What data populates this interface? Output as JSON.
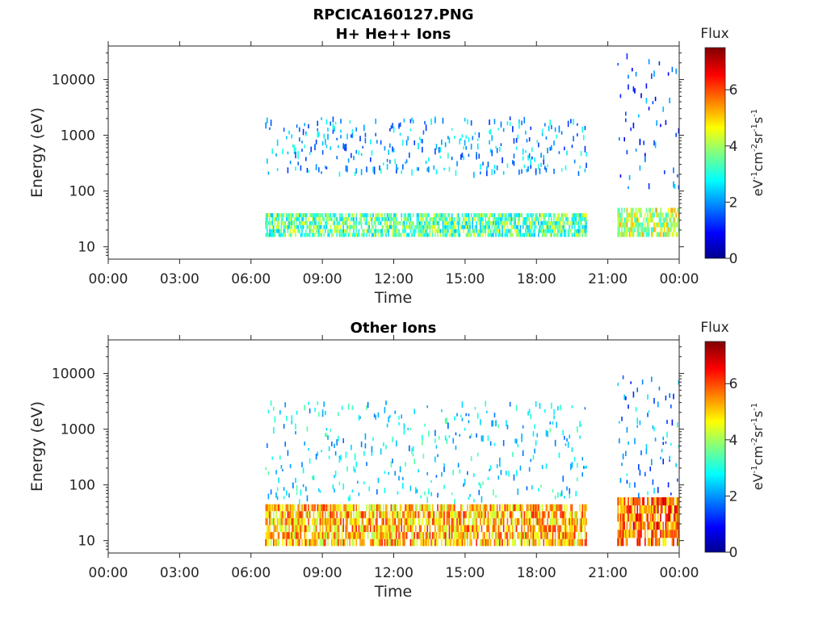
{
  "figure_title": "RPCICA160127.PNG",
  "chart_data": [
    {
      "type": "heatmap",
      "title": "H+ He++ Ions",
      "xlabel": "Time",
      "ylabel": "Energy (eV)",
      "x_ticks": [
        "00:00",
        "03:00",
        "06:00",
        "09:00",
        "12:00",
        "15:00",
        "18:00",
        "21:00",
        "00:00"
      ],
      "x_range_hours": [
        0,
        24
      ],
      "y_scale": "log",
      "ylim": [
        6,
        40000
      ],
      "y_ticks": [
        10,
        100,
        1000,
        10000
      ],
      "y_tick_labels": [
        "10",
        "100",
        "1000",
        "10000"
      ],
      "colorbar": {
        "label": "Flux",
        "unit": "eV-1cm-2sr-1s-1",
        "range": [
          0,
          7.5
        ],
        "ticks": [
          "0",
          "2",
          "4",
          "6"
        ],
        "colormap": "jet"
      },
      "segments": [
        {
          "start_hr": 6.6,
          "end_hr": 20.1,
          "low_energy_band_eV": [
            15,
            40
          ],
          "band_flux": 3.4,
          "scatter_eV": [
            200,
            2000
          ],
          "scatter_flux": 2.2
        },
        {
          "start_hr": 21.4,
          "end_hr": 24.0,
          "low_energy_band_eV": [
            15,
            50
          ],
          "band_flux": 4.2,
          "scatter_eV": [
            100,
            30000
          ],
          "scatter_flux": 1.5
        }
      ]
    },
    {
      "type": "heatmap",
      "title": "Other Ions",
      "xlabel": "Time",
      "ylabel": "Energy (eV)",
      "x_ticks": [
        "00:00",
        "03:00",
        "06:00",
        "09:00",
        "12:00",
        "15:00",
        "18:00",
        "21:00",
        "00:00"
      ],
      "x_range_hours": [
        0,
        24
      ],
      "y_scale": "log",
      "ylim": [
        6,
        40000
      ],
      "y_ticks": [
        10,
        100,
        1000,
        10000
      ],
      "y_tick_labels": [
        "10",
        "100",
        "1000",
        "10000"
      ],
      "colorbar": {
        "label": "Flux",
        "unit": "eV-1cm-2sr-1s-1",
        "range": [
          0,
          7.5
        ],
        "ticks": [
          "0",
          "2",
          "4",
          "6"
        ],
        "colormap": "jet"
      },
      "segments": [
        {
          "start_hr": 6.6,
          "end_hr": 20.1,
          "low_energy_band_eV": [
            8,
            45
          ],
          "band_flux": 5.2,
          "scatter_eV": [
            50,
            3000
          ],
          "scatter_flux": 2.6
        },
        {
          "start_hr": 21.4,
          "end_hr": 24.0,
          "low_energy_band_eV": [
            8,
            60
          ],
          "band_flux": 5.8,
          "scatter_eV": [
            50,
            10000
          ],
          "scatter_flux": 2.0
        }
      ]
    }
  ]
}
